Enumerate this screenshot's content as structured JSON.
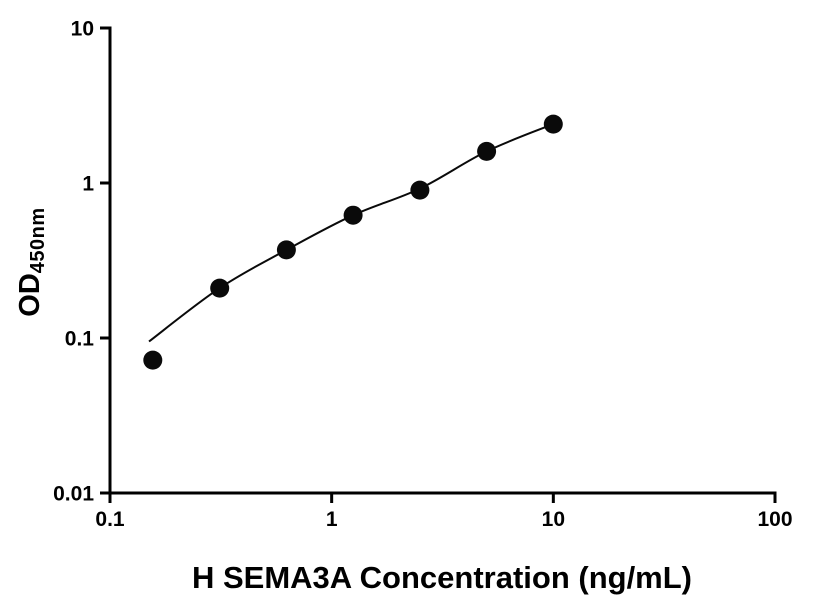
{
  "chart_data": {
    "type": "scatter",
    "title": "",
    "xlabel": "H SEMA3A Concentration (ng/mL)",
    "ylabel_main": "OD",
    "ylabel_sub": "450nm",
    "xscale": "log",
    "yscale": "log",
    "xlim": [
      0.1,
      100
    ],
    "ylim": [
      0.01,
      10
    ],
    "x_ticks": [
      "0.1",
      "1",
      "10",
      "100"
    ],
    "y_ticks": [
      "0.01",
      "0.1",
      "1",
      "10"
    ],
    "grid": false,
    "legend": false,
    "x": [
      0.156,
      0.3125,
      0.625,
      1.25,
      2.5,
      5,
      10
    ],
    "y": [
      0.072,
      0.21,
      0.37,
      0.62,
      0.9,
      1.6,
      2.4
    ],
    "fit_curve_x": [
      0.15,
      0.3125,
      0.625,
      1.25,
      2.5,
      5,
      10
    ],
    "fit_curve_y": [
      0.095,
      0.21,
      0.37,
      0.62,
      0.92,
      1.6,
      2.4
    ],
    "marker_color": "#0a0a0a",
    "line_color": "#0a0a0a",
    "axis_color": "#000000",
    "marker_radius": 9.5
  }
}
